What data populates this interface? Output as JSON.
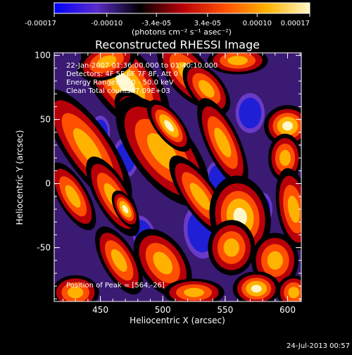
{
  "chart_data": {
    "type": "heatmap",
    "title": "Reconstructed RHESSI Image",
    "xlabel": "Heliocentric X (arcsec)",
    "ylabel": "Heliocentric Y (arcsec)",
    "xlim": [
      413,
      611
    ],
    "ylim": [
      -92,
      102
    ],
    "x_ticks": [
      "450",
      "500",
      "550",
      "600"
    ],
    "y_ticks": [
      "100",
      "50",
      "0",
      "-50"
    ],
    "colorbar": {
      "tick_labels": [
        "-0.00017",
        "-0.00010",
        "-3.4e-05",
        "3.4e-05",
        "0.00010",
        "0.00017"
      ],
      "units": "(photons cm⁻² s⁻¹ asec⁻²)",
      "range": [
        -0.00017,
        0.00017
      ],
      "colormap": [
        "#0000ff",
        "#5b2cc9",
        "#000000",
        "#b8000a",
        "#ff4f00",
        "#ffb300",
        "#fff7c9"
      ]
    },
    "annotations": [
      "22-Jan-2007 01:36:00.000 to 01:40:10.000",
      "Detectors: 4F 5F 6F 7F 8F, Att 0",
      "Energy Range: 25.0 - 50.0 keV",
      "Clean    Total counts: 7.09E+03"
    ],
    "peak_label": "Position of Peak = [564,-26]",
    "peak": [
      564,
      -26
    ]
  },
  "footer": {
    "timestamp": "24-Jul-2013 00:57"
  }
}
